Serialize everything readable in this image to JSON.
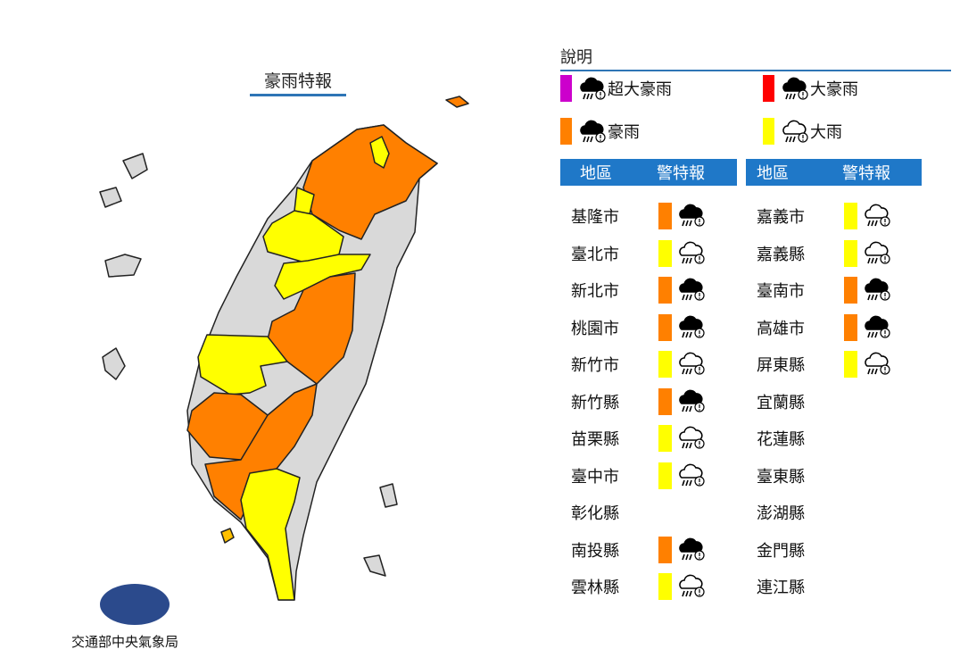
{
  "title": "豪雨特報",
  "agency": "交通部中央氣象局",
  "legend": {
    "title": "說明",
    "items": [
      {
        "label": "超大豪雨",
        "color": "#cc00cc",
        "icon": "torrential-rain-filled-icon"
      },
      {
        "label": "大豪雨",
        "color": "#ff0000",
        "icon": "extremely-heavy-rain-filled-icon"
      },
      {
        "label": "豪雨",
        "color": "#ff8000",
        "icon": "very-heavy-rain-filled-icon"
      },
      {
        "label": "大雨",
        "color": "#ffff00",
        "icon": "heavy-rain-outline-icon"
      }
    ]
  },
  "table": {
    "col_region": "地區",
    "col_warning": "警特報",
    "left": [
      {
        "name": "基隆市",
        "level": "豪雨"
      },
      {
        "name": "臺北市",
        "level": "大雨"
      },
      {
        "name": "新北市",
        "level": "豪雨"
      },
      {
        "name": "桃園市",
        "level": "豪雨"
      },
      {
        "name": "新竹市",
        "level": "大雨"
      },
      {
        "name": "新竹縣",
        "level": "豪雨"
      },
      {
        "name": "苗栗縣",
        "level": "大雨"
      },
      {
        "name": "臺中市",
        "level": "大雨"
      },
      {
        "name": "彰化縣",
        "level": ""
      },
      {
        "name": "南投縣",
        "level": "豪雨"
      },
      {
        "name": "雲林縣",
        "level": "大雨"
      }
    ],
    "right": [
      {
        "name": "嘉義市",
        "level": "大雨"
      },
      {
        "name": "嘉義縣",
        "level": "大雨"
      },
      {
        "name": "臺南市",
        "level": "豪雨"
      },
      {
        "name": "高雄市",
        "level": "豪雨"
      },
      {
        "name": "屏東縣",
        "level": "大雨"
      },
      {
        "name": "宜蘭縣",
        "level": ""
      },
      {
        "name": "花蓮縣",
        "level": ""
      },
      {
        "name": "臺東縣",
        "level": ""
      },
      {
        "name": "澎湖縣",
        "level": ""
      },
      {
        "name": "金門縣",
        "level": ""
      },
      {
        "name": "連江縣",
        "level": ""
      }
    ]
  },
  "colors": {
    "豪雨": "#ff8000",
    "大雨": "#ffff00",
    "none": "#d9d9d9",
    "header": "#1f78c8"
  }
}
